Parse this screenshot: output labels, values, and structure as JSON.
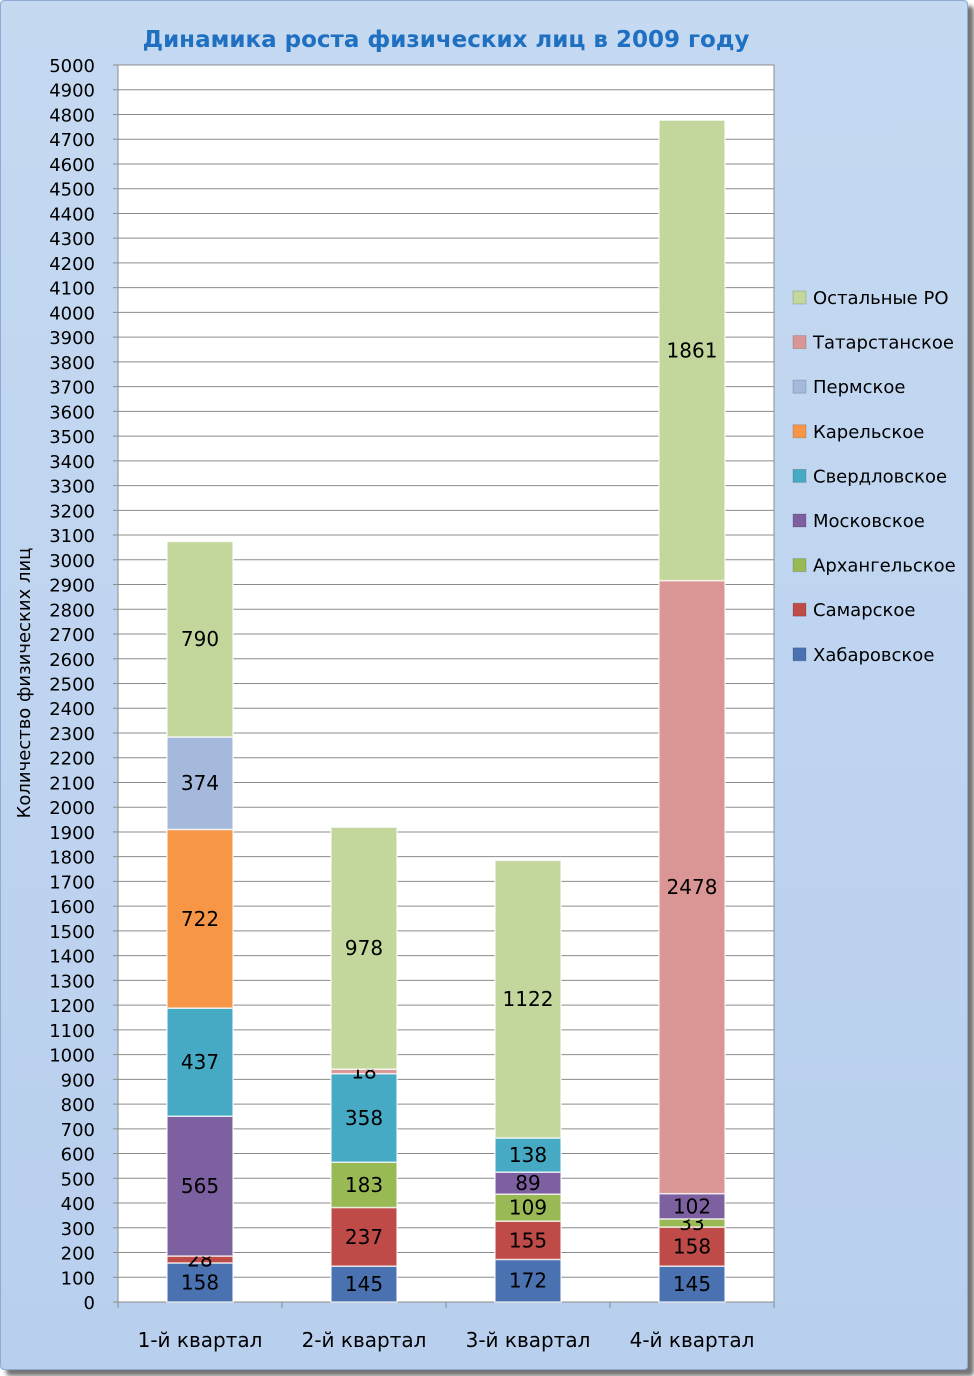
{
  "chart_data": {
    "type": "bar",
    "stacked": true,
    "title": "Динамика роста физических лиц в 2009 году",
    "ylabel": "Количество физических лиц",
    "xlabel": "",
    "ylim": [
      0,
      5000
    ],
    "ytick_step": 100,
    "grid": true,
    "legend_position": "right",
    "categories": [
      "1-й квартал",
      "2-й квартал",
      "3-й квартал",
      "4-й квартал"
    ],
    "series": [
      {
        "name": "Хабаровское",
        "color": "#4a72b0",
        "values": [
          158,
          145,
          172,
          145
        ]
      },
      {
        "name": "Самарское",
        "color": "#be4b48",
        "values": [
          28,
          237,
          155,
          158
        ]
      },
      {
        "name": "Архангельское",
        "color": "#98b954",
        "values": [
          0,
          183,
          109,
          33
        ]
      },
      {
        "name": "Московское",
        "color": "#7d60a0",
        "values": [
          565,
          0,
          89,
          102
        ]
      },
      {
        "name": "Свердловское",
        "color": "#46aac5",
        "values": [
          437,
          358,
          138,
          0
        ]
      },
      {
        "name": "Карельское",
        "color": "#f79646",
        "values": [
          722,
          0,
          0,
          0
        ]
      },
      {
        "name": "Пермское",
        "color": "#a5b9dd",
        "values": [
          374,
          0,
          0,
          0
        ]
      },
      {
        "name": "Татарстанское",
        "color": "#d99694",
        "values": [
          0,
          18,
          0,
          2478
        ]
      },
      {
        "name": "Остальные РО",
        "color": "#c3d69b",
        "values": [
          790,
          978,
          1122,
          1861
        ]
      }
    ]
  }
}
